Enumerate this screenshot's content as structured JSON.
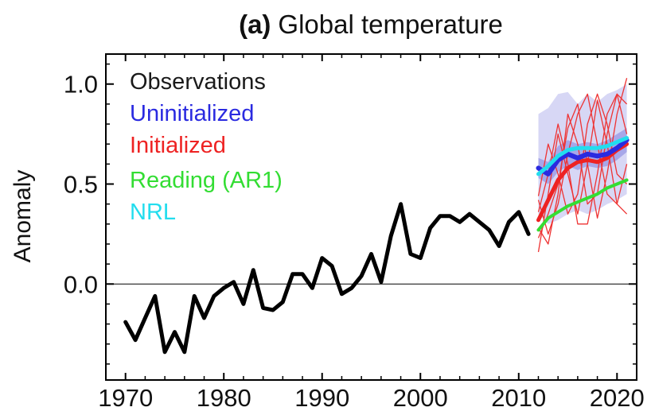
{
  "chart_data": {
    "type": "line",
    "title_prefix": "(a)",
    "title": "Global temperature",
    "xlabel": "",
    "ylabel": "Anomaly",
    "xlim": [
      1968,
      2022
    ],
    "ylim": [
      -0.48,
      1.15
    ],
    "x_ticks": [
      1970,
      1980,
      1990,
      2000,
      2010,
      2020
    ],
    "y_ticks": [
      {
        "value": 1.0,
        "label": "1.0"
      },
      {
        "value": 0.5,
        "label": "0.5"
      },
      {
        "value": 0.0,
        "label": "0.0"
      }
    ],
    "zero_line": true,
    "grid": false,
    "legend_position": "top-left",
    "legend": [
      {
        "label": "Observations",
        "color": "#1a1a1a"
      },
      {
        "label": "Uninitialized",
        "color": "#2a2ae0"
      },
      {
        "label": "Initialized",
        "color": "#ee2222"
      },
      {
        "label": "Reading (AR1)",
        "color": "#33dd33"
      },
      {
        "label": "NRL",
        "color": "#22ddee"
      }
    ],
    "series": [
      {
        "name": "Observations",
        "color": "#000000",
        "x": [
          1970,
          1971,
          1972,
          1973,
          1974,
          1975,
          1976,
          1977,
          1978,
          1979,
          1980,
          1981,
          1982,
          1983,
          1984,
          1985,
          1986,
          1987,
          1988,
          1989,
          1990,
          1991,
          1992,
          1993,
          1994,
          1995,
          1996,
          1997,
          1998,
          1999,
          2000,
          2001,
          2002,
          2003,
          2004,
          2005,
          2006,
          2007,
          2008,
          2009,
          2010,
          2011
        ],
        "values": [
          -0.19,
          -0.28,
          -0.17,
          -0.06,
          -0.34,
          -0.24,
          -0.34,
          -0.06,
          -0.17,
          -0.06,
          -0.02,
          0.01,
          -0.1,
          0.07,
          -0.12,
          -0.13,
          -0.09,
          0.05,
          0.05,
          -0.02,
          0.13,
          0.09,
          -0.05,
          -0.02,
          0.04,
          0.15,
          0.01,
          0.24,
          0.4,
          0.15,
          0.13,
          0.28,
          0.34,
          0.34,
          0.31,
          0.35,
          0.31,
          0.27,
          0.19,
          0.31,
          0.36,
          0.25
        ]
      },
      {
        "name": "Uninitialized",
        "color": "#2a2ae0",
        "x": [
          2012,
          2013,
          2014,
          2015,
          2016,
          2017,
          2018,
          2019,
          2020,
          2021
        ],
        "values": [
          0.58,
          0.55,
          0.62,
          0.65,
          0.63,
          0.65,
          0.64,
          0.65,
          0.68,
          0.72
        ]
      },
      {
        "name": "Initialized",
        "color": "#ee2222",
        "x": [
          2012,
          2013,
          2014,
          2015,
          2016,
          2017,
          2018,
          2019,
          2020,
          2021
        ],
        "values": [
          0.32,
          0.42,
          0.52,
          0.58,
          0.61,
          0.62,
          0.61,
          0.63,
          0.67,
          0.7
        ]
      },
      {
        "name": "Reading (AR1)",
        "color": "#33dd33",
        "x": [
          2012,
          2013,
          2014,
          2015,
          2016,
          2017,
          2018,
          2019,
          2020,
          2021
        ],
        "values": [
          0.27,
          0.33,
          0.36,
          0.39,
          0.41,
          0.43,
          0.45,
          0.48,
          0.5,
          0.52
        ]
      },
      {
        "name": "NRL",
        "color": "#22ddee",
        "x": [
          2012,
          2013,
          2014,
          2015,
          2016,
          2017,
          2018,
          2019,
          2020,
          2021
        ],
        "values": [
          0.55,
          0.59,
          0.64,
          0.67,
          0.68,
          0.68,
          0.68,
          0.69,
          0.71,
          0.73
        ]
      }
    ],
    "bands": {
      "uninitialized_outer": {
        "color": "#c9c9f2",
        "x": [
          2012,
          2013,
          2014,
          2015,
          2016,
          2017,
          2018,
          2019,
          2020,
          2021
        ],
        "upper": [
          0.85,
          0.88,
          0.95,
          0.96,
          0.9,
          0.95,
          0.91,
          0.95,
          0.97,
          1.0
        ],
        "lower": [
          0.35,
          0.3,
          0.32,
          0.35,
          0.37,
          0.35,
          0.37,
          0.4,
          0.42,
          0.45
        ]
      },
      "uninitialized_inner": {
        "color": "#9f9fe6",
        "x": [
          2012,
          2013,
          2014,
          2015,
          2016,
          2017,
          2018,
          2019,
          2020,
          2021
        ],
        "upper": [
          0.63,
          0.61,
          0.69,
          0.72,
          0.7,
          0.71,
          0.7,
          0.72,
          0.75,
          0.78
        ],
        "lower": [
          0.53,
          0.5,
          0.56,
          0.59,
          0.57,
          0.59,
          0.58,
          0.59,
          0.62,
          0.66
        ]
      }
    },
    "initialized_members": [
      [
        0.16,
        0.45,
        0.75,
        0.55,
        0.35,
        0.6,
        0.92,
        0.7,
        0.4,
        0.35
      ],
      [
        0.23,
        0.35,
        0.5,
        0.78,
        0.9,
        0.6,
        0.33,
        0.55,
        0.85,
        1.03
      ],
      [
        0.42,
        0.25,
        0.4,
        0.65,
        0.85,
        0.95,
        0.7,
        0.45,
        0.4,
        0.6
      ],
      [
        0.36,
        0.55,
        0.8,
        0.6,
        0.3,
        0.3,
        0.55,
        0.85,
        0.95,
        0.75
      ],
      [
        0.44,
        0.7,
        0.55,
        0.35,
        0.45,
        0.8,
        0.95,
        0.8,
        0.55,
        0.5
      ],
      [
        0.28,
        0.2,
        0.45,
        0.85,
        0.7,
        0.4,
        0.45,
        0.75,
        0.95,
        0.9
      ]
    ]
  }
}
